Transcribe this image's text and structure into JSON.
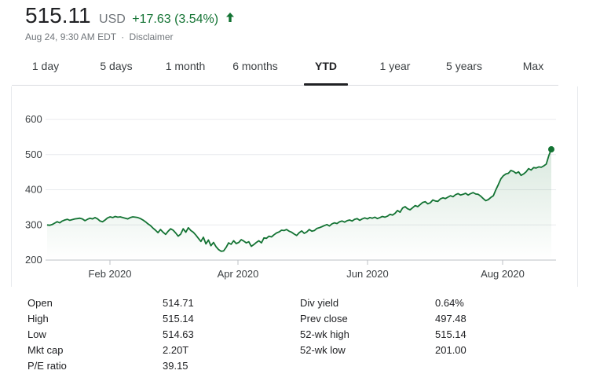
{
  "quote": {
    "price": "515.11",
    "currency": "USD",
    "change": "+17.63 (3.54%)",
    "timestamp": "Aug 24, 9:30 AM EDT",
    "separator": "·",
    "disclaimer": "Disclaimer",
    "accent_color": "#137333"
  },
  "tabs": [
    {
      "label": "1 day",
      "active": false
    },
    {
      "label": "5 days",
      "active": false
    },
    {
      "label": "1 month",
      "active": false
    },
    {
      "label": "6 months",
      "active": false
    },
    {
      "label": "YTD",
      "active": true
    },
    {
      "label": "1 year",
      "active": false
    },
    {
      "label": "5 years",
      "active": false
    },
    {
      "label": "Max",
      "active": false
    }
  ],
  "chart_data": {
    "type": "area",
    "y_ticks": [
      "600",
      "500",
      "400",
      "300",
      "200"
    ],
    "x_ticks": [
      "Feb 2020",
      "Apr 2020",
      "Jun 2020",
      "Aug 2020"
    ],
    "ylim": [
      200,
      600
    ],
    "grid": true,
    "line_color": "#137333",
    "series": [
      {
        "values": [
          300,
          299,
          301,
          305,
          309,
          306,
          311,
          314,
          316,
          313,
          315,
          317,
          318,
          319,
          317,
          312,
          316,
          319,
          317,
          321,
          317,
          311,
          309,
          314,
          320,
          323,
          321,
          324,
          322,
          323,
          321,
          319,
          317,
          321,
          323,
          322,
          321,
          318,
          314,
          309,
          303,
          298,
          291,
          285,
          278,
          287,
          279,
          273,
          282,
          289,
          285,
          277,
          268,
          274,
          289,
          279,
          292,
          284,
          279,
          271,
          262,
          253,
          265,
          246,
          257,
          241,
          250,
          238,
          230,
          225,
          226,
          236,
          249,
          245,
          255,
          247,
          250,
          258,
          254,
          249,
          252,
          239,
          244,
          250,
          255,
          249,
          263,
          262,
          268,
          266,
          272,
          277,
          280,
          285,
          284,
          287,
          282,
          279,
          274,
          270,
          278,
          283,
          276,
          280,
          287,
          282,
          284,
          290,
          292,
          295,
          298,
          301,
          297,
          303,
          306,
          304,
          309,
          311,
          308,
          312,
          314,
          311,
          316,
          318,
          313,
          317,
          320,
          317,
          321,
          319,
          322,
          318,
          321,
          324,
          322,
          325,
          330,
          328,
          333,
          341,
          336,
          348,
          352,
          346,
          343,
          349,
          355,
          352,
          358,
          364,
          366,
          360,
          363,
          371,
          368,
          367,
          374,
          377,
          375,
          379,
          383,
          380,
          386,
          389,
          385,
          387,
          390,
          385,
          389,
          392,
          388,
          387,
          382,
          375,
          369,
          372,
          378,
          383,
          400,
          415,
          431,
          440,
          445,
          447,
          455,
          452,
          447,
          451,
          441,
          445,
          451,
          460,
          456,
          463,
          462,
          465,
          464,
          468,
          473,
          497,
          515
        ]
      }
    ]
  },
  "stats": {
    "left": [
      {
        "label": "Open",
        "value": "514.71"
      },
      {
        "label": "High",
        "value": "515.14"
      },
      {
        "label": "Low",
        "value": "514.63"
      },
      {
        "label": "Mkt cap",
        "value": "2.20T"
      },
      {
        "label": "P/E ratio",
        "value": "39.15"
      }
    ],
    "right": [
      {
        "label": "Div yield",
        "value": "0.64%"
      },
      {
        "label": "Prev close",
        "value": "497.48"
      },
      {
        "label": "52-wk high",
        "value": "515.14"
      },
      {
        "label": "52-wk low",
        "value": "201.00"
      }
    ]
  }
}
